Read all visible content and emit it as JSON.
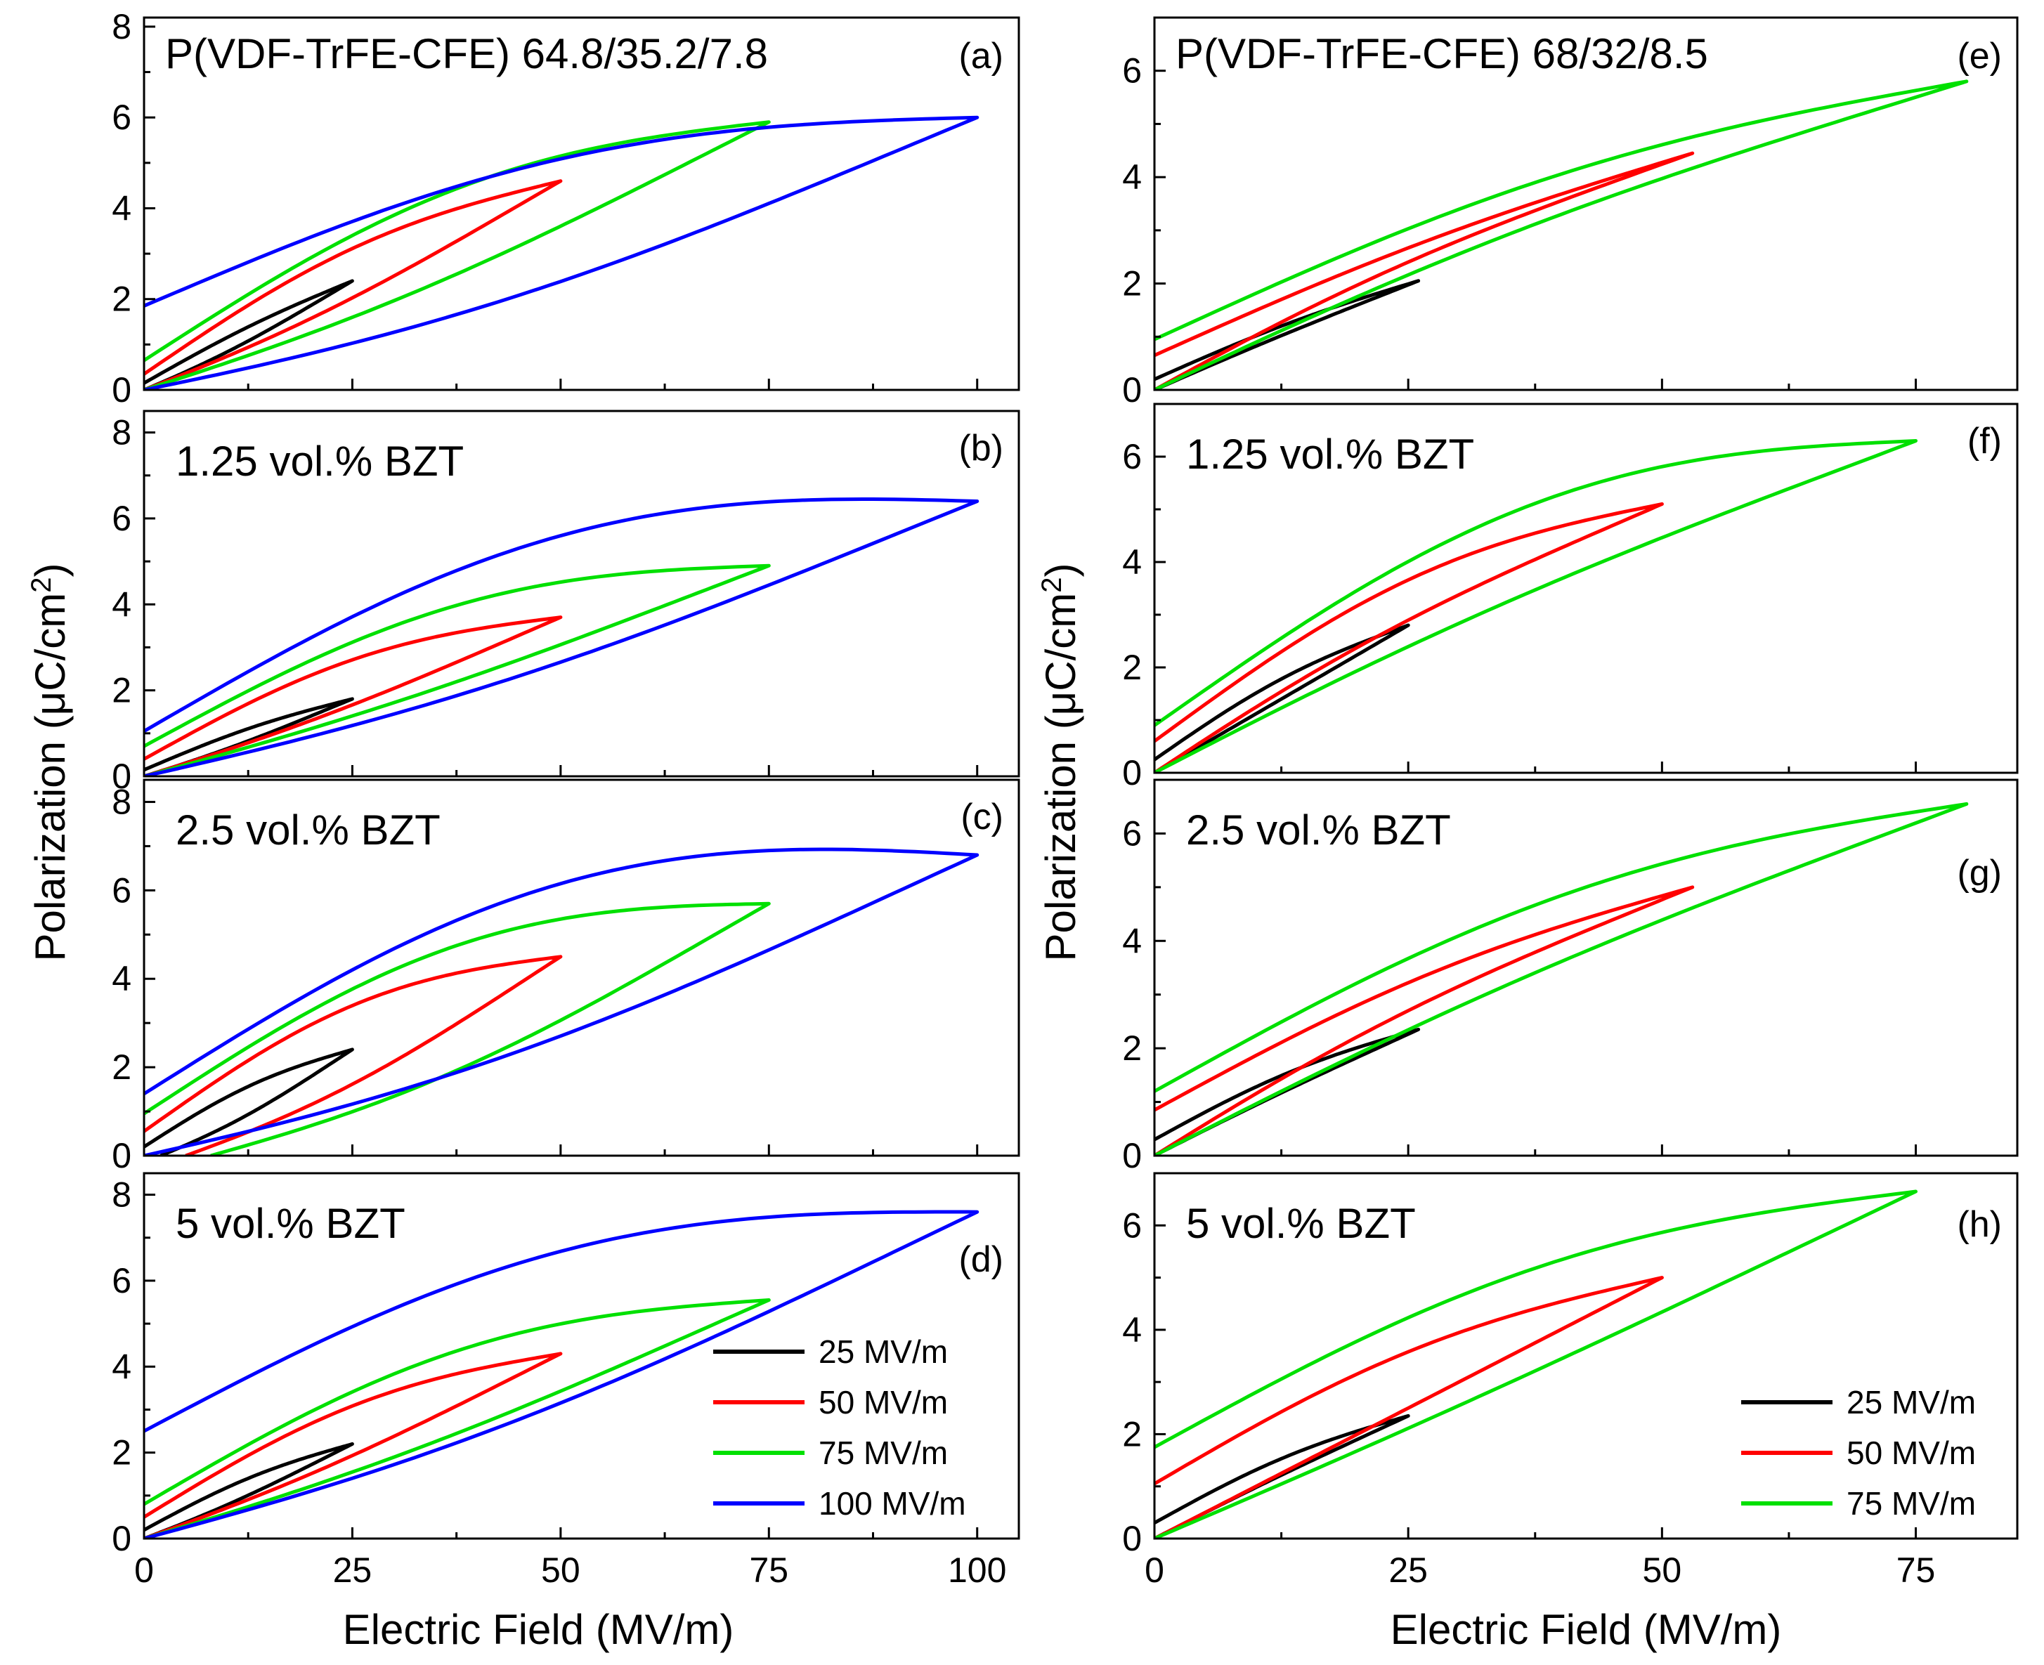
{
  "figure": {
    "left_column": {
      "ylabel": "Polarization (μC/cm²)",
      "ylabel_main": "Polarization (μC/cm",
      "ylabel_sup": "2",
      "ylabel_close": ")",
      "xlabel": "Electric Field (MV/m)"
    },
    "right_column": {
      "ylabel": "Polarization (μC/cm²)",
      "ylabel_main": "Polarization (μC/cm",
      "ylabel_sup": "2",
      "ylabel_close": ")",
      "xlabel": "Electric Field (MV/m)"
    },
    "colors": {
      "25 MV/m": "#000000",
      "50 MV/m": "#ff0000",
      "75 MV/m": "#00e000",
      "100 MV/m": "#0000ff"
    }
  },
  "chart_data": [
    {
      "id": "a",
      "panel_letter": "(a)",
      "title": "P(VDF-TrFE-CFE) 64.8/35.2/7.8",
      "type": "line",
      "xlabel": "Electric Field (MV/m)",
      "ylabel": "Polarization (μC/cm²)",
      "xlim": [
        0,
        105
      ],
      "ylim": [
        0,
        8.2
      ],
      "xticks": [
        0,
        25,
        50,
        75,
        100
      ],
      "yticks": [
        0,
        2,
        4,
        6,
        8
      ],
      "series": [
        {
          "name": "25 MV/m",
          "Emax": 25,
          "Pmax": 2.4,
          "Pr": 0.15,
          "up_sag": 0.06,
          "down_bow": 0.05,
          "hook": 0.0
        },
        {
          "name": "50 MV/m",
          "Emax": 50,
          "Pmax": 4.6,
          "Pr": 0.35,
          "up_sag": 0.07,
          "down_bow": 0.15,
          "hook": 0.0
        },
        {
          "name": "75 MV/m",
          "Emax": 75,
          "Pmax": 5.9,
          "Pr": 0.65,
          "up_sag": 0.08,
          "down_bow": 0.22,
          "hook": 0.0
        },
        {
          "name": "100 MV/m",
          "Emax": 100,
          "Pmax": 6.0,
          "Pr": 1.85,
          "up_sag": 0.12,
          "down_bow": 0.28,
          "hook": 0.15
        }
      ],
      "legend": null
    },
    {
      "id": "b",
      "panel_letter": "(b)",
      "title": "1.25 vol.% BZT",
      "type": "line",
      "xlabel": "Electric Field (MV/m)",
      "ylabel": "Polarization (μC/cm²)",
      "xlim": [
        0,
        105
      ],
      "ylim": [
        0,
        8.5
      ],
      "xticks": [
        0,
        25,
        50,
        75,
        100
      ],
      "yticks": [
        0,
        2,
        4,
        6,
        8
      ],
      "series": [
        {
          "name": "25 MV/m",
          "Emax": 25,
          "Pmax": 1.8,
          "Pr": 0.15,
          "up_sag": 0.05,
          "down_bow": 0.08,
          "hook": 0.0
        },
        {
          "name": "50 MV/m",
          "Emax": 50,
          "Pmax": 3.7,
          "Pr": 0.4,
          "up_sag": 0.06,
          "down_bow": 0.2,
          "hook": 0.0
        },
        {
          "name": "75 MV/m",
          "Emax": 75,
          "Pmax": 4.9,
          "Pr": 0.7,
          "up_sag": 0.06,
          "down_bow": 0.28,
          "hook": 0.0
        },
        {
          "name": "100 MV/m",
          "Emax": 100,
          "Pmax": 6.4,
          "Pr": 1.05,
          "up_sag": 0.1,
          "down_bow": 0.35,
          "hook": 0.0
        }
      ],
      "legend": null
    },
    {
      "id": "c",
      "panel_letter": "(c)",
      "title": "2.5 vol.% BZT",
      "type": "line",
      "xlabel": "Electric Field (MV/m)",
      "ylabel": "Polarization (μC/cm²)",
      "xlim": [
        0,
        105
      ],
      "ylim": [
        0,
        8.5
      ],
      "xticks": [
        0,
        25,
        50,
        75,
        100
      ],
      "yticks": [
        0,
        2,
        4,
        6,
        8
      ],
      "series": [
        {
          "name": "25 MV/m",
          "Emax": 25,
          "Pmax": 2.4,
          "Pr": 0.2,
          "up_sag": 0.08,
          "down_bow": 0.12,
          "hook": 0.0,
          "Ec": 2
        },
        {
          "name": "50 MV/m",
          "Emax": 50,
          "Pmax": 4.5,
          "Pr": 0.55,
          "up_sag": 0.1,
          "down_bow": 0.22,
          "hook": 0.0,
          "Ec": 5
        },
        {
          "name": "75 MV/m",
          "Emax": 75,
          "Pmax": 5.7,
          "Pr": 0.95,
          "up_sag": 0.12,
          "down_bow": 0.3,
          "hook": 0.0,
          "Ec": 8
        },
        {
          "name": "100 MV/m",
          "Emax": 100,
          "Pmax": 6.8,
          "Pr": 1.4,
          "up_sag": 0.12,
          "down_bow": 0.38,
          "hook": 0.0,
          "Ec": 0
        }
      ],
      "legend": null
    },
    {
      "id": "d",
      "panel_letter": "(d)",
      "title": "5 vol.% BZT",
      "type": "line",
      "xlabel": "Electric Field (MV/m)",
      "ylabel": "Polarization (μC/cm²)",
      "xlim": [
        0,
        105
      ],
      "ylim": [
        0,
        8.5
      ],
      "xticks": [
        0,
        25,
        50,
        75,
        100
      ],
      "yticks": [
        0,
        2,
        4,
        6,
        8
      ],
      "series": [
        {
          "name": "25 MV/m",
          "Emax": 25,
          "Pmax": 2.2,
          "Pr": 0.2,
          "up_sag": 0.05,
          "down_bow": 0.1,
          "hook": 0.0
        },
        {
          "name": "50 MV/m",
          "Emax": 50,
          "Pmax": 4.3,
          "Pr": 0.5,
          "up_sag": 0.06,
          "down_bow": 0.18,
          "hook": 0.0
        },
        {
          "name": "75 MV/m",
          "Emax": 75,
          "Pmax": 5.55,
          "Pr": 0.8,
          "up_sag": 0.07,
          "down_bow": 0.25,
          "hook": 0.0
        },
        {
          "name": "100 MV/m",
          "Emax": 100,
          "Pmax": 7.6,
          "Pr": 2.5,
          "up_sag": 0.1,
          "down_bow": 0.32,
          "hook": 0.1
        }
      ],
      "legend": {
        "placement": "bottom-right",
        "entries": [
          "25 MV/m",
          "50 MV/m",
          "75 MV/m",
          "100 MV/m"
        ]
      }
    },
    {
      "id": "e",
      "panel_letter": "(e)",
      "title": "P(VDF-TrFE-CFE) 68/32/8.5",
      "type": "line",
      "xlabel": "Electric Field (MV/m)",
      "ylabel": "Polarization (μC/cm²)",
      "xlim": [
        0,
        85
      ],
      "ylim": [
        0,
        7
      ],
      "xticks": [
        0,
        25,
        50,
        75
      ],
      "yticks": [
        0,
        2,
        4,
        6
      ],
      "series": [
        {
          "name": "25 MV/m",
          "Emax": 26,
          "Pmax": 2.05,
          "Pr": 0.2,
          "up_sag": -0.02,
          "down_bow": 0.06,
          "hook": 0.0
        },
        {
          "name": "50 MV/m",
          "Emax": 53,
          "Pmax": 4.45,
          "Pr": 0.65,
          "up_sag": -0.08,
          "down_bow": 0.06,
          "hook": 0.0
        },
        {
          "name": "75 MV/m",
          "Emax": 80,
          "Pmax": 5.8,
          "Pr": 0.95,
          "up_sag": -0.08,
          "down_bow": 0.14,
          "hook": 0.0
        }
      ],
      "legend": null
    },
    {
      "id": "f",
      "panel_letter": "(f)",
      "title": "1.25 vol.% BZT",
      "type": "line",
      "xlabel": "Electric Field (MV/m)",
      "ylabel": "Polarization (μC/cm²)",
      "xlim": [
        0,
        85
      ],
      "ylim": [
        0,
        7
      ],
      "xticks": [
        0,
        25,
        50,
        75
      ],
      "yticks": [
        0,
        2,
        4,
        6
      ],
      "series": [
        {
          "name": "25 MV/m",
          "Emax": 25,
          "Pmax": 2.8,
          "Pr": 0.25,
          "up_sag": 0.0,
          "down_bow": 0.1,
          "hook": 0.0
        },
        {
          "name": "50 MV/m",
          "Emax": 50,
          "Pmax": 5.1,
          "Pr": 0.6,
          "up_sag": -0.08,
          "down_bow": 0.18,
          "hook": 0.0
        },
        {
          "name": "75 MV/m",
          "Emax": 75,
          "Pmax": 6.3,
          "Pr": 0.9,
          "up_sag": -0.06,
          "down_bow": 0.28,
          "hook": 0.0
        }
      ],
      "legend": null
    },
    {
      "id": "g",
      "panel_letter": "(g)",
      "title": "2.5 vol.% BZT",
      "type": "line",
      "xlabel": "Electric Field (MV/m)",
      "ylabel": "Polarization (μC/cm²)",
      "xlim": [
        0,
        85
      ],
      "ylim": [
        0,
        7
      ],
      "xticks": [
        0,
        25,
        50,
        75
      ],
      "yticks": [
        0,
        2,
        4,
        6
      ],
      "series": [
        {
          "name": "25 MV/m",
          "Emax": 26,
          "Pmax": 2.35,
          "Pr": 0.3,
          "up_sag": -0.02,
          "down_bow": 0.1,
          "hook": 0.0
        },
        {
          "name": "50 MV/m",
          "Emax": 53,
          "Pmax": 5.0,
          "Pr": 0.85,
          "up_sag": -0.08,
          "down_bow": 0.1,
          "hook": 0.0
        },
        {
          "name": "75 MV/m",
          "Emax": 80,
          "Pmax": 6.55,
          "Pr": 1.2,
          "up_sag": -0.06,
          "down_bow": 0.18,
          "hook": 0.0
        }
      ],
      "legend": null
    },
    {
      "id": "h",
      "panel_letter": "(h)",
      "title": "5 vol.% BZT",
      "type": "line",
      "xlabel": "Electric Field (MV/m)",
      "ylabel": "Polarization (μC/cm²)",
      "xlim": [
        0,
        85
      ],
      "ylim": [
        0,
        7
      ],
      "xticks": [
        0,
        25,
        50,
        75
      ],
      "yticks": [
        0,
        2,
        4,
        6
      ],
      "series": [
        {
          "name": "25 MV/m",
          "Emax": 25,
          "Pmax": 2.35,
          "Pr": 0.3,
          "up_sag": -0.02,
          "down_bow": 0.1,
          "hook": 0.0
        },
        {
          "name": "50 MV/m",
          "Emax": 50,
          "Pmax": 5.0,
          "Pr": 1.05,
          "up_sag": 0.0,
          "down_bow": 0.14,
          "hook": 0.0
        },
        {
          "name": "75 MV/m",
          "Emax": 75,
          "Pmax": 6.65,
          "Pr": 1.75,
          "up_sag": 0.02,
          "down_bow": 0.2,
          "hook": 0.0
        }
      ],
      "legend": {
        "placement": "bottom-right",
        "entries": [
          "25 MV/m",
          "50 MV/m",
          "75 MV/m"
        ]
      }
    }
  ]
}
